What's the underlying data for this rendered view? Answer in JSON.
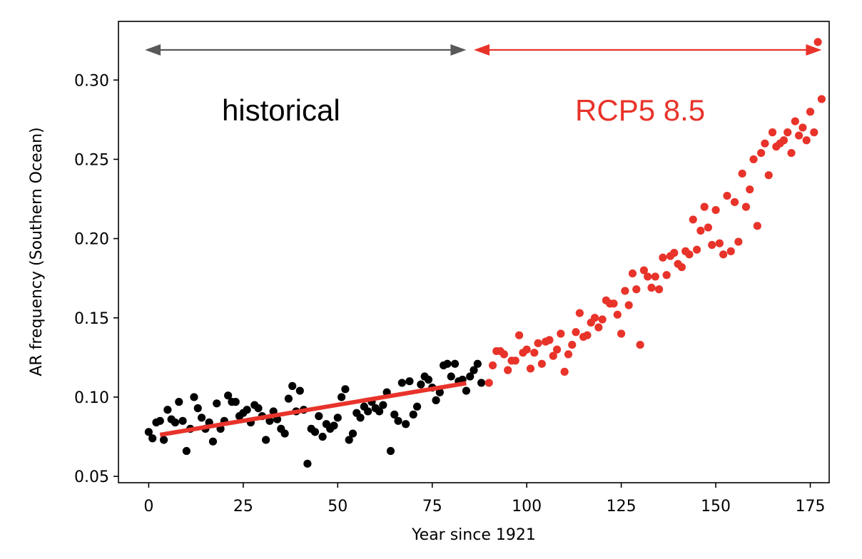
{
  "chart_data": {
    "type": "scatter",
    "xlabel": "Year since 1921",
    "ylabel": "AR frequency (Southern Ocean)",
    "xlim": [
      -8,
      180
    ],
    "ylim": [
      0.046,
      0.337
    ],
    "x_ticks": [
      0,
      25,
      50,
      75,
      100,
      125,
      150,
      175
    ],
    "y_ticks": [
      0.05,
      0.1,
      0.15,
      0.2,
      0.25,
      0.3
    ],
    "grid": false,
    "annotations": [
      {
        "text": "historical",
        "color": "#000000",
        "x": 35,
        "y": 0.2795
      },
      {
        "text": "RCP5 8.5",
        "color": "#e8332a",
        "x": 130,
        "y": 0.2795
      }
    ],
    "period_arrows": [
      {
        "name": "historical",
        "color": "#595959",
        "x_start": -1,
        "x_end": 84,
        "y": 0.319
      },
      {
        "name": "RCP5 8.5",
        "color": "#e8332a",
        "x_start": 86,
        "x_end": 178,
        "y": 0.319
      }
    ],
    "trend_line": {
      "color": "#e8332a",
      "x": [
        3,
        84
      ],
      "y": [
        0.0762,
        0.1088
      ]
    },
    "series": [
      {
        "color": "#000000",
        "x": [
          0,
          1,
          2,
          3,
          4,
          5,
          6,
          7,
          8,
          9,
          10,
          11,
          12,
          13,
          14,
          15,
          16,
          17,
          18,
          19,
          20,
          21,
          22,
          23,
          24,
          25,
          26,
          27,
          28,
          29,
          30,
          31,
          32,
          33,
          34,
          35,
          36,
          37,
          38,
          39,
          40,
          41,
          42,
          43,
          44,
          45,
          46,
          47,
          48,
          49,
          50,
          51,
          52,
          53,
          54,
          55,
          56,
          57,
          58,
          59,
          60,
          61,
          62,
          63,
          64,
          65,
          66,
          67,
          68,
          69,
          70,
          71,
          72,
          73,
          74,
          75,
          76,
          77,
          78,
          79,
          80,
          81,
          82,
          83,
          84,
          85,
          86,
          87,
          88
        ],
        "y": [
          0.078,
          0.074,
          0.084,
          0.085,
          0.073,
          0.092,
          0.086,
          0.084,
          0.097,
          0.085,
          0.066,
          0.08,
          0.1,
          0.093,
          0.087,
          0.08,
          0.084,
          0.072,
          0.096,
          0.08,
          0.085,
          0.101,
          0.097,
          0.097,
          0.088,
          0.09,
          0.092,
          0.084,
          0.095,
          0.093,
          0.088,
          0.073,
          0.085,
          0.091,
          0.086,
          0.08,
          0.077,
          0.099,
          0.107,
          0.091,
          0.104,
          0.092,
          0.058,
          0.08,
          0.078,
          0.088,
          0.075,
          0.083,
          0.08,
          0.082,
          0.087,
          0.1,
          0.105,
          0.073,
          0.077,
          0.09,
          0.087,
          0.094,
          0.091,
          0.097,
          0.093,
          0.091,
          0.095,
          0.103,
          0.066,
          0.089,
          0.085,
          0.109,
          0.083,
          0.11,
          0.089,
          0.094,
          0.108,
          0.113,
          0.111,
          0.106,
          0.098,
          0.103,
          0.12,
          0.121,
          0.113,
          0.121,
          0.11,
          0.111,
          0.104,
          0.113,
          0.117,
          0.121,
          0.109
        ]
      },
      {
        "color": "#e8332a",
        "x": [
          90,
          91,
          92,
          93,
          94,
          95,
          96,
          97,
          98,
          99,
          100,
          101,
          102,
          103,
          104,
          105,
          106,
          107,
          108,
          109,
          110,
          111,
          112,
          113,
          114,
          115,
          116,
          117,
          118,
          119,
          120,
          121,
          122,
          123,
          124,
          125,
          126,
          127,
          128,
          129,
          130,
          131,
          132,
          133,
          134,
          135,
          136,
          137,
          138,
          139,
          140,
          141,
          142,
          143,
          144,
          145,
          146,
          147,
          148,
          149,
          150,
          151,
          152,
          153,
          154,
          155,
          156,
          157,
          158,
          159,
          160,
          161,
          162,
          163,
          164,
          165,
          166,
          167,
          168,
          169,
          170,
          171,
          172,
          173,
          174,
          175,
          176,
          177,
          178
        ],
        "y": [
          0.109,
          0.12,
          0.129,
          0.129,
          0.127,
          0.117,
          0.123,
          0.123,
          0.139,
          0.128,
          0.13,
          0.118,
          0.128,
          0.134,
          0.121,
          0.135,
          0.136,
          0.126,
          0.13,
          0.14,
          0.116,
          0.127,
          0.133,
          0.141,
          0.153,
          0.138,
          0.139,
          0.147,
          0.15,
          0.144,
          0.149,
          0.161,
          0.159,
          0.159,
          0.152,
          0.14,
          0.167,
          0.158,
          0.178,
          0.168,
          0.133,
          0.18,
          0.176,
          0.169,
          0.176,
          0.168,
          0.188,
          0.177,
          0.189,
          0.191,
          0.184,
          0.182,
          0.192,
          0.19,
          0.212,
          0.193,
          0.205,
          0.22,
          0.207,
          0.196,
          0.218,
          0.197,
          0.19,
          0.227,
          0.192,
          0.223,
          0.198,
          0.241,
          0.22,
          0.231,
          0.25,
          0.208,
          0.254,
          0.26,
          0.24,
          0.267,
          0.258,
          0.26,
          0.262,
          0.267,
          0.254,
          0.274,
          0.265,
          0.27,
          0.262,
          0.28,
          0.267,
          0.324,
          0.288
        ]
      }
    ]
  }
}
